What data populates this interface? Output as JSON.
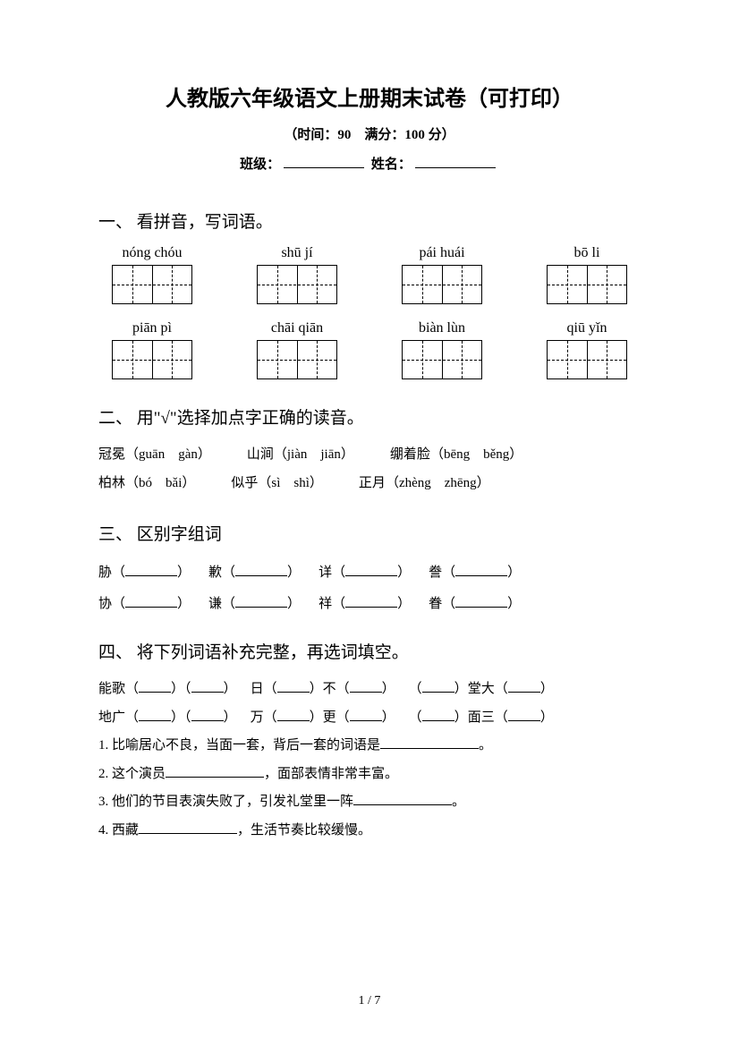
{
  "title": "人教版六年级语文上册期末试卷（可打印）",
  "subtitle": "（时间：90　满分：100 分）",
  "labels": {
    "class": "班级：",
    "name": "姓名："
  },
  "section1": {
    "heading": "一、 看拼音，写词语。",
    "row1": [
      "nóng chóu",
      "shū jí",
      "pái huái",
      "bō li"
    ],
    "row2": [
      "piān pì",
      "chāi qiān",
      "biàn lùn",
      "qiū yǐn"
    ]
  },
  "section2": {
    "heading": "二、 用\"√\"选择加点字正确的读音。",
    "rows": [
      [
        {
          "hanzi": [
            "冠",
            "冕"
          ],
          "dot": 0,
          "opts": "（guān　gàn）"
        },
        {
          "hanzi": [
            "山",
            "涧"
          ],
          "dot": 1,
          "opts": "（jiàn　jiān）"
        },
        {
          "hanzi": [
            "绷",
            "着",
            "脸"
          ],
          "dot": 0,
          "opts": "（bēng　běng）"
        }
      ],
      [
        {
          "hanzi": [
            "柏",
            "林"
          ],
          "dot": 0,
          "opts": "（bó　bǎi）"
        },
        {
          "hanzi": [
            "似",
            "乎"
          ],
          "dot": 0,
          "opts": "（sì　shì）"
        },
        {
          "hanzi": [
            "正",
            "月"
          ],
          "dot": 0,
          "opts": "（zhèng　zhēng）"
        }
      ]
    ]
  },
  "section3": {
    "heading": "三、 区别字组词",
    "rows": [
      [
        "胁",
        "歉",
        "详",
        "誊"
      ],
      [
        "协",
        "谦",
        "祥",
        "眷"
      ]
    ]
  },
  "section4": {
    "heading": "四、 将下列词语补充完整，再选词填空。",
    "row1": [
      {
        "pre": "能歌",
        "b": 2,
        "post": ""
      },
      {
        "pre": "日",
        "mid": "不",
        "b": 2,
        "post": ""
      },
      {
        "pre": "",
        "mid": "堂大",
        "b": 2,
        "post": ""
      }
    ],
    "row2": [
      {
        "pre": "地广",
        "b": 2,
        "post": ""
      },
      {
        "pre": "万",
        "mid": "更",
        "b": 2,
        "post": ""
      },
      {
        "pre": "",
        "mid": "面三",
        "b": 2,
        "post": ""
      }
    ],
    "lines": [
      [
        "1. 比喻居心不良，当面一套，背后一套的词语是",
        "。"
      ],
      [
        "2. 这个演员",
        "，面部表情非常丰富。"
      ],
      [
        "3. 他们的节目表演失败了，引发礼堂里一阵",
        "。"
      ],
      [
        "4. 西藏",
        "，生活节奏比较缓慢。"
      ]
    ]
  },
  "footer": "1 / 7"
}
